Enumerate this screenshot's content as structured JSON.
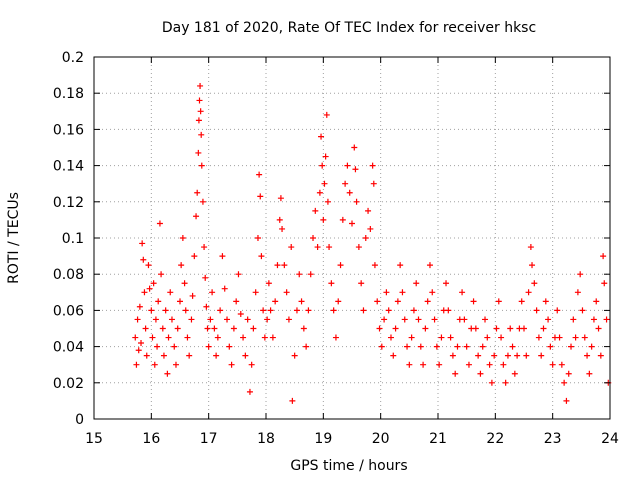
{
  "chart_data": {
    "type": "scatter",
    "title": "Day 181 of 2020, Rate Of TEC Index for receiver hksc",
    "xlabel": "GPS time / hours",
    "ylabel": "ROTI / TECUs",
    "xlim": [
      15,
      24
    ],
    "ylim": [
      0,
      0.2
    ],
    "xticks": [
      15,
      16,
      17,
      18,
      19,
      20,
      21,
      22,
      23,
      24
    ],
    "xtick_labels": [
      "15",
      "16",
      "17",
      "18",
      "19",
      "20",
      "21",
      "22",
      "23",
      "24"
    ],
    "yticks": [
      0,
      0.02,
      0.04,
      0.06,
      0.08,
      0.1,
      0.12,
      0.14,
      0.16,
      0.18,
      0.2
    ],
    "ytick_labels": [
      "0",
      "0.02",
      "0.04",
      "0.06",
      "0.08",
      "0.1",
      "0.12",
      "0.14",
      "0.16",
      "0.18",
      "0.2"
    ],
    "grid": true,
    "marker": "plus",
    "marker_color": "#ff0000",
    "series": [
      {
        "name": "ROTI",
        "points": [
          [
            15.72,
            0.045
          ],
          [
            15.74,
            0.03
          ],
          [
            15.76,
            0.055
          ],
          [
            15.78,
            0.038
          ],
          [
            15.8,
            0.062
          ],
          [
            15.82,
            0.042
          ],
          [
            15.84,
            0.097
          ],
          [
            15.86,
            0.088
          ],
          [
            15.88,
            0.07
          ],
          [
            15.9,
            0.05
          ],
          [
            15.92,
            0.035
          ],
          [
            15.95,
            0.085
          ],
          [
            15.97,
            0.072
          ],
          [
            16.0,
            0.06
          ],
          [
            16.02,
            0.045
          ],
          [
            16.04,
            0.075
          ],
          [
            16.06,
            0.03
          ],
          [
            16.08,
            0.055
          ],
          [
            16.1,
            0.04
          ],
          [
            16.12,
            0.065
          ],
          [
            16.15,
            0.108
          ],
          [
            16.17,
            0.08
          ],
          [
            16.2,
            0.05
          ],
          [
            16.22,
            0.035
          ],
          [
            16.25,
            0.06
          ],
          [
            16.28,
            0.025
          ],
          [
            16.3,
            0.045
          ],
          [
            16.33,
            0.07
          ],
          [
            16.36,
            0.055
          ],
          [
            16.4,
            0.04
          ],
          [
            16.43,
            0.03
          ],
          [
            16.46,
            0.05
          ],
          [
            16.5,
            0.065
          ],
          [
            16.52,
            0.085
          ],
          [
            16.55,
            0.1
          ],
          [
            16.58,
            0.075
          ],
          [
            16.6,
            0.06
          ],
          [
            16.63,
            0.045
          ],
          [
            16.66,
            0.035
          ],
          [
            16.7,
            0.055
          ],
          [
            16.72,
            0.068
          ],
          [
            16.75,
            0.09
          ],
          [
            16.78,
            0.112
          ],
          [
            16.8,
            0.125
          ],
          [
            16.82,
            0.147
          ],
          [
            16.83,
            0.165
          ],
          [
            16.84,
            0.176
          ],
          [
            16.85,
            0.184
          ],
          [
            16.86,
            0.17
          ],
          [
            16.87,
            0.157
          ],
          [
            16.88,
            0.14
          ],
          [
            16.9,
            0.12
          ],
          [
            16.92,
            0.095
          ],
          [
            16.94,
            0.078
          ],
          [
            16.96,
            0.062
          ],
          [
            16.98,
            0.05
          ],
          [
            17.0,
            0.04
          ],
          [
            17.03,
            0.055
          ],
          [
            17.06,
            0.07
          ],
          [
            17.1,
            0.05
          ],
          [
            17.13,
            0.035
          ],
          [
            17.16,
            0.045
          ],
          [
            17.2,
            0.06
          ],
          [
            17.24,
            0.09
          ],
          [
            17.28,
            0.072
          ],
          [
            17.32,
            0.055
          ],
          [
            17.36,
            0.04
          ],
          [
            17.4,
            0.03
          ],
          [
            17.44,
            0.05
          ],
          [
            17.48,
            0.065
          ],
          [
            17.52,
            0.08
          ],
          [
            17.56,
            0.058
          ],
          [
            17.6,
            0.045
          ],
          [
            17.64,
            0.035
          ],
          [
            17.68,
            0.055
          ],
          [
            17.72,
            0.015
          ],
          [
            17.75,
            0.03
          ],
          [
            17.78,
            0.05
          ],
          [
            17.82,
            0.07
          ],
          [
            17.86,
            0.1
          ],
          [
            17.88,
            0.135
          ],
          [
            17.9,
            0.123
          ],
          [
            17.92,
            0.09
          ],
          [
            17.95,
            0.06
          ],
          [
            17.98,
            0.045
          ],
          [
            18.02,
            0.055
          ],
          [
            18.05,
            0.075
          ],
          [
            18.08,
            0.06
          ],
          [
            18.12,
            0.045
          ],
          [
            18.16,
            0.065
          ],
          [
            18.2,
            0.085
          ],
          [
            18.24,
            0.11
          ],
          [
            18.26,
            0.122
          ],
          [
            18.28,
            0.105
          ],
          [
            18.32,
            0.085
          ],
          [
            18.36,
            0.07
          ],
          [
            18.4,
            0.055
          ],
          [
            18.44,
            0.095
          ],
          [
            18.46,
            0.01
          ],
          [
            18.5,
            0.035
          ],
          [
            18.54,
            0.06
          ],
          [
            18.58,
            0.08
          ],
          [
            18.62,
            0.065
          ],
          [
            18.66,
            0.05
          ],
          [
            18.7,
            0.04
          ],
          [
            18.74,
            0.06
          ],
          [
            18.78,
            0.08
          ],
          [
            18.82,
            0.1
          ],
          [
            18.86,
            0.115
          ],
          [
            18.9,
            0.095
          ],
          [
            18.94,
            0.125
          ],
          [
            18.96,
            0.156
          ],
          [
            18.98,
            0.14
          ],
          [
            19.0,
            0.11
          ],
          [
            19.02,
            0.13
          ],
          [
            19.04,
            0.145
          ],
          [
            19.06,
            0.168
          ],
          [
            19.08,
            0.12
          ],
          [
            19.1,
            0.095
          ],
          [
            19.14,
            0.075
          ],
          [
            19.18,
            0.06
          ],
          [
            19.22,
            0.045
          ],
          [
            19.26,
            0.065
          ],
          [
            19.3,
            0.085
          ],
          [
            19.34,
            0.11
          ],
          [
            19.38,
            0.13
          ],
          [
            19.42,
            0.14
          ],
          [
            19.46,
            0.125
          ],
          [
            19.5,
            0.108
          ],
          [
            19.54,
            0.15
          ],
          [
            19.56,
            0.138
          ],
          [
            19.58,
            0.12
          ],
          [
            19.62,
            0.095
          ],
          [
            19.66,
            0.075
          ],
          [
            19.7,
            0.06
          ],
          [
            19.74,
            0.1
          ],
          [
            19.78,
            0.115
          ],
          [
            19.82,
            0.105
          ],
          [
            19.86,
            0.14
          ],
          [
            19.88,
            0.13
          ],
          [
            19.9,
            0.085
          ],
          [
            19.94,
            0.065
          ],
          [
            19.98,
            0.05
          ],
          [
            20.02,
            0.04
          ],
          [
            20.06,
            0.055
          ],
          [
            20.1,
            0.07
          ],
          [
            20.14,
            0.06
          ],
          [
            20.18,
            0.045
          ],
          [
            20.22,
            0.035
          ],
          [
            20.26,
            0.05
          ],
          [
            20.3,
            0.065
          ],
          [
            20.34,
            0.085
          ],
          [
            20.38,
            0.07
          ],
          [
            20.42,
            0.055
          ],
          [
            20.46,
            0.04
          ],
          [
            20.5,
            0.03
          ],
          [
            20.54,
            0.045
          ],
          [
            20.58,
            0.06
          ],
          [
            20.62,
            0.075
          ],
          [
            20.66,
            0.055
          ],
          [
            20.7,
            0.04
          ],
          [
            20.74,
            0.03
          ],
          [
            20.78,
            0.05
          ],
          [
            20.82,
            0.065
          ],
          [
            20.86,
            0.085
          ],
          [
            20.9,
            0.07
          ],
          [
            20.94,
            0.055
          ],
          [
            20.98,
            0.04
          ],
          [
            21.02,
            0.03
          ],
          [
            21.06,
            0.045
          ],
          [
            21.1,
            0.06
          ],
          [
            21.14,
            0.075
          ],
          [
            21.18,
            0.06
          ],
          [
            21.22,
            0.045
          ],
          [
            21.26,
            0.035
          ],
          [
            21.3,
            0.025
          ],
          [
            21.34,
            0.04
          ],
          [
            21.38,
            0.055
          ],
          [
            21.42,
            0.07
          ],
          [
            21.46,
            0.055
          ],
          [
            21.5,
            0.04
          ],
          [
            21.54,
            0.03
          ],
          [
            21.58,
            0.05
          ],
          [
            21.62,
            0.065
          ],
          [
            21.66,
            0.05
          ],
          [
            21.7,
            0.035
          ],
          [
            21.74,
            0.025
          ],
          [
            21.78,
            0.04
          ],
          [
            21.82,
            0.055
          ],
          [
            21.86,
            0.045
          ],
          [
            21.9,
            0.03
          ],
          [
            21.94,
            0.02
          ],
          [
            21.98,
            0.035
          ],
          [
            22.02,
            0.05
          ],
          [
            22.06,
            0.065
          ],
          [
            22.1,
            0.045
          ],
          [
            22.14,
            0.03
          ],
          [
            22.18,
            0.02
          ],
          [
            22.22,
            0.035
          ],
          [
            22.26,
            0.05
          ],
          [
            22.3,
            0.04
          ],
          [
            22.34,
            0.025
          ],
          [
            22.38,
            0.035
          ],
          [
            22.42,
            0.05
          ],
          [
            22.46,
            0.065
          ],
          [
            22.5,
            0.05
          ],
          [
            22.54,
            0.035
          ],
          [
            22.58,
            0.07
          ],
          [
            22.62,
            0.095
          ],
          [
            22.64,
            0.085
          ],
          [
            22.68,
            0.075
          ],
          [
            22.72,
            0.06
          ],
          [
            22.76,
            0.045
          ],
          [
            22.8,
            0.035
          ],
          [
            22.84,
            0.05
          ],
          [
            22.88,
            0.065
          ],
          [
            22.92,
            0.055
          ],
          [
            22.96,
            0.04
          ],
          [
            23.0,
            0.03
          ],
          [
            23.04,
            0.045
          ],
          [
            23.08,
            0.06
          ],
          [
            23.12,
            0.045
          ],
          [
            23.16,
            0.03
          ],
          [
            23.2,
            0.02
          ],
          [
            23.24,
            0.01
          ],
          [
            23.28,
            0.025
          ],
          [
            23.32,
            0.04
          ],
          [
            23.36,
            0.055
          ],
          [
            23.4,
            0.045
          ],
          [
            23.44,
            0.07
          ],
          [
            23.48,
            0.08
          ],
          [
            23.52,
            0.06
          ],
          [
            23.56,
            0.045
          ],
          [
            23.6,
            0.035
          ],
          [
            23.64,
            0.025
          ],
          [
            23.68,
            0.04
          ],
          [
            23.72,
            0.055
          ],
          [
            23.76,
            0.065
          ],
          [
            23.8,
            0.05
          ],
          [
            23.84,
            0.035
          ],
          [
            23.88,
            0.09
          ],
          [
            23.9,
            0.075
          ],
          [
            23.94,
            0.055
          ],
          [
            23.97,
            0.02
          ]
        ]
      }
    ]
  }
}
